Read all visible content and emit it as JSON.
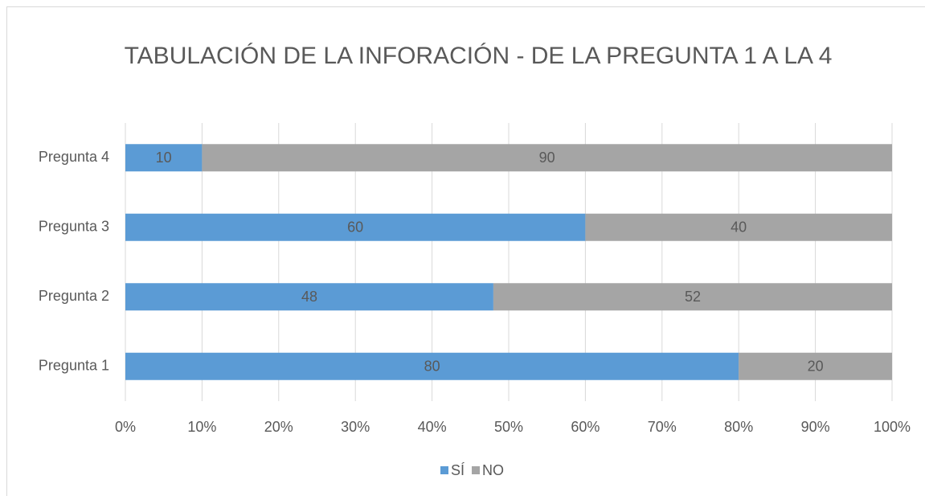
{
  "chart_data": {
    "type": "stacked_bar_horizontal",
    "title": "TABULACIÓN DE LA INFORACIÓN - DE LA PREGUNTA 1 A LA 4",
    "categories": [
      "Pregunta 1",
      "Pregunta 2",
      "Pregunta 3",
      "Pregunta 4"
    ],
    "series": [
      {
        "name": "SÍ",
        "color": "#5b9bd5",
        "values": [
          80,
          48,
          60,
          10
        ]
      },
      {
        "name": "NO",
        "color": "#a5a5a5",
        "values": [
          20,
          52,
          40,
          90
        ]
      }
    ],
    "xlim": [
      0,
      100
    ],
    "xticks": [
      {
        "value": 0,
        "label": "0%"
      },
      {
        "value": 10,
        "label": "10%"
      },
      {
        "value": 20,
        "label": "20%"
      },
      {
        "value": 30,
        "label": "30%"
      },
      {
        "value": 40,
        "label": "40%"
      },
      {
        "value": 50,
        "label": "50%"
      },
      {
        "value": 60,
        "label": "60%"
      },
      {
        "value": 70,
        "label": "70%"
      },
      {
        "value": 80,
        "label": "80%"
      },
      {
        "value": 90,
        "label": "90%"
      },
      {
        "value": 100,
        "label": "100%"
      }
    ],
    "grid": true,
    "legend": "bottom"
  }
}
